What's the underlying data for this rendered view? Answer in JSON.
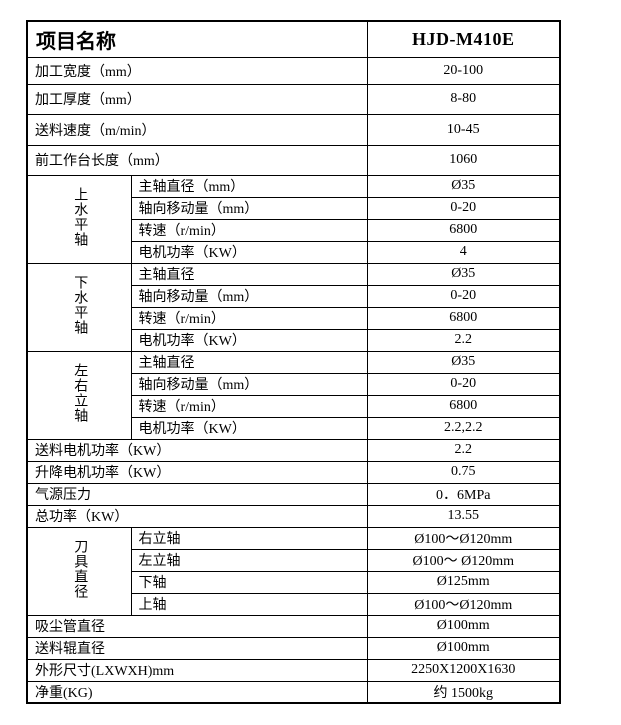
{
  "page": {
    "background_color": "#ffffff",
    "border_color": "#000000",
    "text_color": "#000000"
  },
  "table": {
    "header": {
      "label": "项目名称",
      "model": "HJD-M410E"
    },
    "top_rows": [
      {
        "label": "加工宽度（mm）",
        "value": "20-100"
      },
      {
        "label": "加工厚度（mm）",
        "value": "8-80"
      },
      {
        "label": "送料速度（m/min）",
        "value": "10-45"
      },
      {
        "label": "前工作台长度（mm）",
        "value": "1060"
      }
    ],
    "spindle_groups": [
      {
        "name": "上水平轴",
        "rows": [
          {
            "label": "主轴直径（mm）",
            "value": "Ø35"
          },
          {
            "label": "轴向移动量（mm）",
            "value": "0-20"
          },
          {
            "label": "转速（r/min）",
            "value": "6800"
          },
          {
            "label": "电机功率（KW）",
            "value": "4"
          }
        ]
      },
      {
        "name": "下水平轴",
        "rows": [
          {
            "label": "主轴直径",
            "value": "Ø35"
          },
          {
            "label": "轴向移动量（mm）",
            "value": "0-20"
          },
          {
            "label": "转速（r/min）",
            "value": "6800"
          },
          {
            "label": "电机功率（KW）",
            "value": "2.2"
          }
        ]
      },
      {
        "name": "左右立轴",
        "rows": [
          {
            "label": "主轴直径",
            "value": "Ø35"
          },
          {
            "label": "轴向移动量（mm）",
            "value": "0-20"
          },
          {
            "label": "转速（r/min）",
            "value": "6800"
          },
          {
            "label": "电机功率（KW）",
            "value": "2.2,2.2"
          }
        ]
      }
    ],
    "mid_rows": [
      {
        "label": "送料电机功率（KW）",
        "value": "2.2"
      },
      {
        "label": "升降电机功率（KW）",
        "value": "0.75"
      },
      {
        "label": "气源压力",
        "value": "0．6MPa"
      },
      {
        "label": "总功率（KW）",
        "value": "13.55"
      }
    ],
    "tool_group": {
      "name": "刀具直径",
      "rows": [
        {
          "label": "右立轴",
          "value": "Ø100～Ø120mm"
        },
        {
          "label": "左立轴",
          "value": "Ø100～ Ø120mm"
        },
        {
          "label": "下轴",
          "value": "Ø125mm"
        },
        {
          "label": "上轴",
          "value": "Ø100～Ø120mm"
        }
      ]
    },
    "bottom_rows": [
      {
        "label": "吸尘管直径",
        "value": "Ø100mm"
      },
      {
        "label": "送料辊直径",
        "value": "Ø100mm"
      },
      {
        "label": "外形尺寸(LXWXH)mm",
        "value": "2250X1200X1630"
      },
      {
        "label": "净重(KG)",
        "value": "约 1500kg"
      }
    ]
  }
}
